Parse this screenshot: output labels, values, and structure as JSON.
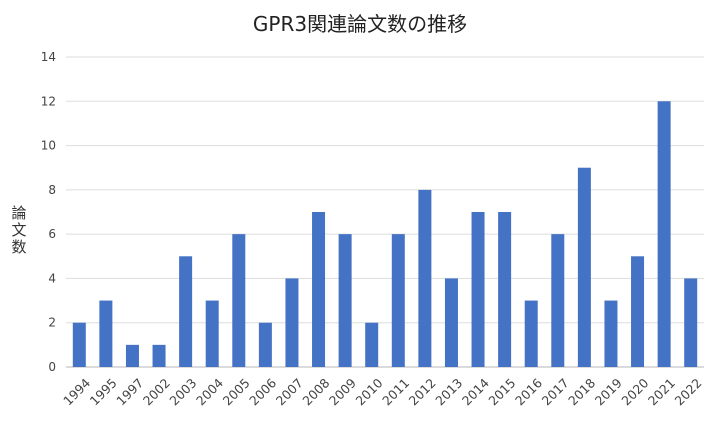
{
  "chart_data": {
    "type": "bar",
    "title": "GPR3関連論文数の推移",
    "xlabel": "",
    "ylabel": "論文数",
    "categories": [
      "1994",
      "1995",
      "1997",
      "2002",
      "2003",
      "2004",
      "2005",
      "2006",
      "2007",
      "2008",
      "2009",
      "2010",
      "2011",
      "2012",
      "2013",
      "2014",
      "2015",
      "2016",
      "2017",
      "2018",
      "2019",
      "2020",
      "2021",
      "2022"
    ],
    "values": [
      2,
      3,
      1,
      1,
      5,
      3,
      6,
      2,
      4,
      7,
      6,
      2,
      6,
      8,
      4,
      7,
      7,
      3,
      6,
      9,
      3,
      5,
      12,
      4
    ],
    "ylim": [
      0,
      14
    ],
    "yticks": [
      0,
      2,
      4,
      6,
      8,
      10,
      12,
      14
    ],
    "grid": true,
    "legend": "none",
    "bar_color": "#4472C4"
  }
}
